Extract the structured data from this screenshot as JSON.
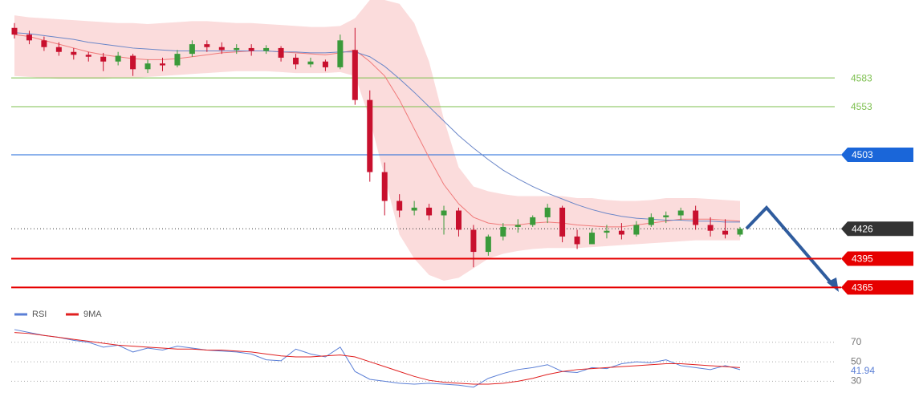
{
  "chart_data": [
    {
      "type": "candlestick",
      "open": [
        4635,
        4628,
        4622,
        4615,
        4610,
        4607,
        4605,
        4600,
        4606,
        4592,
        4598,
        4596,
        4608,
        4618,
        4615,
        4612,
        4614,
        4611,
        4614,
        4604,
        4597,
        4600,
        4594,
        4612,
        4560,
        4485,
        4455,
        4445,
        4448,
        4440,
        4445,
        4425,
        4402,
        4418,
        4428,
        4430,
        4438,
        4448,
        4418,
        4410,
        4422,
        4424,
        4420,
        4430,
        4438,
        4440,
        4445,
        4430,
        4424,
        4420
      ],
      "high": [
        4640,
        4632,
        4626,
        4620,
        4614,
        4610,
        4609,
        4610,
        4608,
        4602,
        4604,
        4612,
        4622,
        4622,
        4620,
        4618,
        4618,
        4617,
        4616,
        4608,
        4604,
        4602,
        4628,
        4635,
        4570,
        4495,
        4462,
        4455,
        4452,
        4450,
        4448,
        4430,
        4420,
        4432,
        4436,
        4440,
        4452,
        4450,
        4425,
        4426,
        4430,
        4432,
        4434,
        4442,
        4444,
        4448,
        4450,
        4438,
        4436,
        4428
      ],
      "low": [
        4624,
        4618,
        4611,
        4606,
        4602,
        4600,
        4590,
        4596,
        4585,
        4588,
        4590,
        4594,
        4605,
        4610,
        4608,
        4608,
        4606,
        4608,
        4600,
        4592,
        4594,
        4590,
        4592,
        4555,
        4475,
        4440,
        4438,
        4440,
        4435,
        4420,
        4418,
        4386,
        4398,
        4414,
        4422,
        4428,
        4432,
        4412,
        4405,
        4410,
        4416,
        4415,
        4418,
        4428,
        4432,
        4435,
        4425,
        4418,
        4416,
        4418
      ],
      "close": [
        4628,
        4622,
        4615,
        4610,
        4607,
        4605,
        4600,
        4606,
        4592,
        4598,
        4596,
        4608,
        4618,
        4615,
        4612,
        4614,
        4611,
        4614,
        4604,
        4597,
        4600,
        4594,
        4622,
        4560,
        4485,
        4455,
        4445,
        4448,
        4440,
        4445,
        4425,
        4402,
        4418,
        4428,
        4430,
        4438,
        4448,
        4418,
        4410,
        4422,
        4424,
        4420,
        4430,
        4438,
        4440,
        4445,
        4430,
        4424,
        4420,
        4426
      ],
      "up_color": "#3a9a3a",
      "down_color": "#c8102e",
      "bands": {
        "color": "#fbdcdc",
        "upper": [
          4648,
          4646,
          4645,
          4644,
          4643,
          4642,
          4641,
          4640,
          4640,
          4639,
          4640,
          4641,
          4642,
          4642,
          4641,
          4640,
          4640,
          4639,
          4638,
          4637,
          4636,
          4636,
          4637,
          4645,
          4664,
          4664,
          4660,
          4640,
          4600,
          4540,
          4490,
          4470,
          4465,
          4462,
          4460,
          4460,
          4460,
          4460,
          4458,
          4458,
          4456,
          4455,
          4455,
          4456,
          4458,
          4458,
          4458,
          4457,
          4456,
          4455
        ],
        "lower": [
          4585,
          4584,
          4583,
          4582,
          4582,
          4582,
          4582,
          4583,
          4583,
          4584,
          4585,
          4586,
          4587,
          4588,
          4589,
          4590,
          4590,
          4590,
          4589,
          4588,
          4588,
          4588,
          4589,
          4585,
          4540,
          4480,
          4420,
          4395,
          4378,
          4372,
          4375,
          4385,
          4395,
          4400,
          4403,
          4405,
          4406,
          4406,
          4406,
          4407,
          4408,
          4409,
          4410,
          4411,
          4412,
          4413,
          4414,
          4414,
          4414,
          4414
        ]
      },
      "lines": [
        {
          "color": "#f07a7a",
          "values": [
            4628,
            4626,
            4622,
            4618,
            4614,
            4610,
            4607,
            4605,
            4603,
            4602,
            4602,
            4603,
            4605,
            4607,
            4609,
            4610,
            4611,
            4611,
            4610,
            4609,
            4608,
            4607,
            4609,
            4612,
            4600,
            4585,
            4560,
            4530,
            4500,
            4472,
            4452,
            4438,
            4432,
            4430,
            4430,
            4432,
            4433,
            4432,
            4430,
            4429,
            4428,
            4428,
            4430,
            4432,
            4434,
            4436,
            4436,
            4436,
            4435,
            4434
          ]
        },
        {
          "color": "#6a86c8",
          "values": [
            4630,
            4629,
            4627,
            4625,
            4623,
            4620,
            4618,
            4616,
            4614,
            4613,
            4612,
            4611,
            4611,
            4611,
            4611,
            4611,
            4611,
            4611,
            4610,
            4610,
            4609,
            4609,
            4610,
            4610,
            4605,
            4595,
            4582,
            4568,
            4553,
            4538,
            4523,
            4510,
            4498,
            4487,
            4478,
            4470,
            4463,
            4457,
            4451,
            4446,
            4442,
            4439,
            4437,
            4436,
            4435,
            4435,
            4434,
            4434,
            4433,
            4433
          ]
        }
      ],
      "levels": [
        {
          "value": 4583,
          "color": "#7cbf4e",
          "tag": false,
          "width": 1,
          "dash": false
        },
        {
          "value": 4553,
          "color": "#7cbf4e",
          "tag": false,
          "width": 1,
          "dash": false
        },
        {
          "value": 4503,
          "color": "#1a66d9",
          "tag": true,
          "width": 1,
          "dash": false
        },
        {
          "value": 4426,
          "color": "#333333",
          "tag": true,
          "width": 1,
          "dash": true
        },
        {
          "value": 4395,
          "color": "#e60000",
          "tag": true,
          "width": 2,
          "dash": false
        },
        {
          "value": 4365,
          "color": "#e60000",
          "tag": true,
          "width": 2,
          "dash": false
        }
      ],
      "ylim": [
        4347,
        4664
      ]
    },
    {
      "type": "line",
      "series": [
        {
          "name": "RSI",
          "color": "#5b7fd6",
          "values": [
            83,
            80,
            77,
            75,
            72,
            70,
            65,
            67,
            60,
            64,
            62,
            66,
            64,
            62,
            61,
            60,
            58,
            52,
            51,
            63,
            58,
            55,
            65,
            40,
            32,
            30,
            28,
            27,
            28,
            27,
            26,
            24,
            33,
            38,
            42,
            44,
            47,
            40,
            39,
            44,
            43,
            48,
            50,
            49,
            52,
            46,
            44,
            42,
            46,
            41.94
          ]
        },
        {
          "name": "9MA",
          "color": "#e02020",
          "values": [
            80,
            79,
            77,
            75,
            73,
            71,
            69,
            67,
            66,
            65,
            64,
            63,
            63,
            62,
            62,
            61,
            60,
            58,
            56,
            55,
            55,
            56,
            57,
            55,
            50,
            45,
            40,
            35,
            31,
            29,
            28,
            27,
            27,
            28,
            30,
            33,
            37,
            40,
            42,
            43,
            44,
            45,
            46,
            47,
            48,
            48,
            47,
            46,
            45,
            44
          ]
        }
      ],
      "ylim": [
        18,
        92
      ],
      "yticks": [
        70,
        50,
        30
      ],
      "grid": true
    }
  ]
}
